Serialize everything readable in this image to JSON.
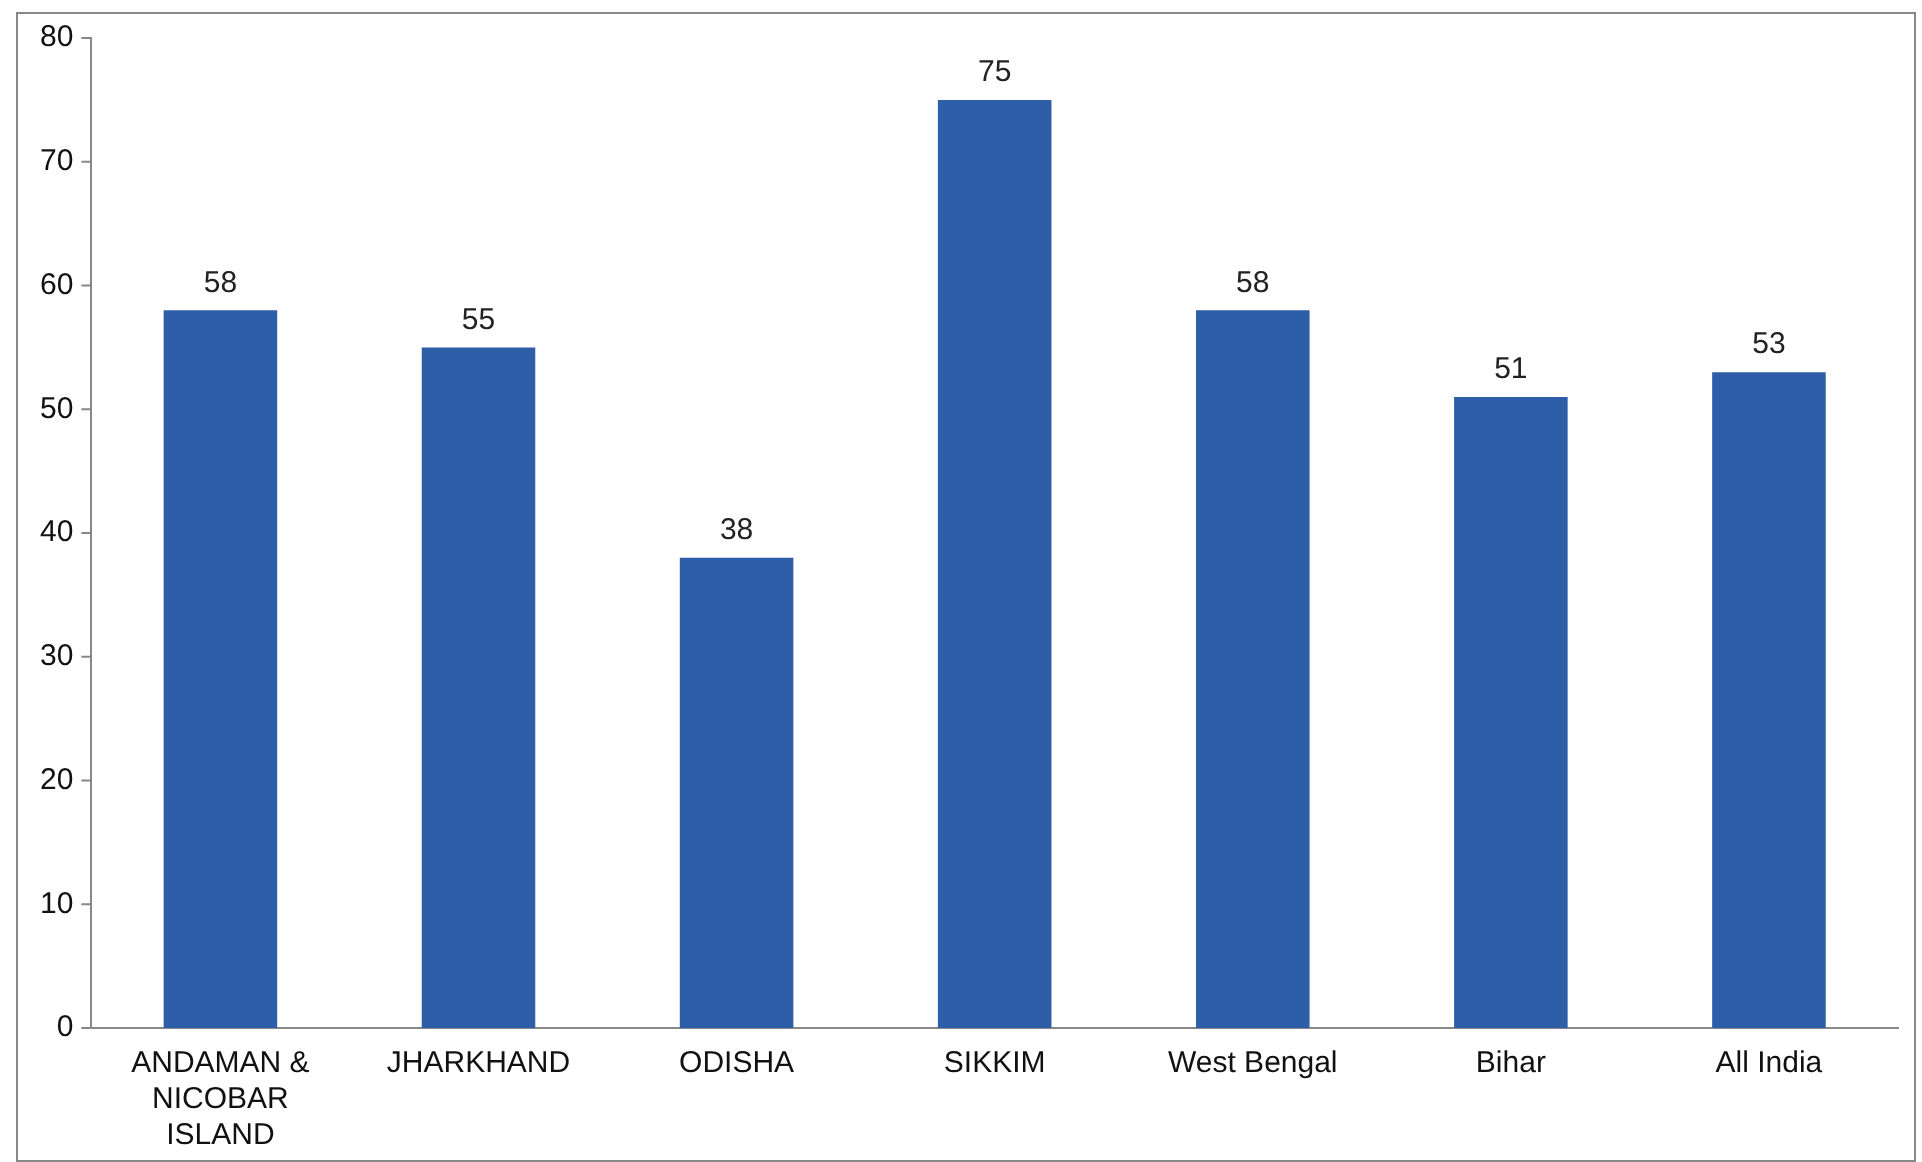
{
  "chart_data": {
    "type": "bar",
    "categories": [
      "ANDAMAN & NICOBAR ISLAND",
      "JHARKHAND",
      "ODISHA",
      "SIKKIM",
      "West Bengal",
      "Bihar",
      "All India"
    ],
    "values": [
      58,
      55,
      38,
      75,
      58,
      51,
      53
    ],
    "color": "#2e5ea8",
    "ylim": [
      0,
      80
    ],
    "yticks": [
      0,
      10,
      20,
      30,
      40,
      50,
      60,
      70,
      80
    ],
    "grid": false,
    "legend": false,
    "data_labels": true
  }
}
